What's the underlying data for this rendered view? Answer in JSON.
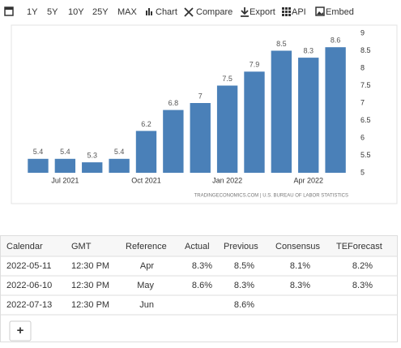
{
  "toolbar": [
    "1Y",
    "5Y",
    "10Y",
    "25Y",
    "MAX",
    "Chart",
    "Compare",
    "Export",
    "API",
    "Embed"
  ],
  "chart_data": {
    "type": "bar",
    "categories": [
      null,
      "Jul 2021",
      null,
      null,
      "Oct 2021",
      null,
      null,
      "Jan 2022",
      null,
      null,
      "Apr 2022",
      null
    ],
    "values": [
      5.4,
      5.4,
      5.3,
      5.4,
      6.2,
      6.8,
      7,
      7.5,
      7.9,
      8.5,
      8.3,
      8.6
    ],
    "color": "#4a80b8",
    "ylim": [
      5,
      9
    ],
    "yticks": [
      5,
      5.5,
      6,
      6.5,
      7,
      7.5,
      8,
      8.5,
      9
    ],
    "grid": false,
    "source": "TRADINGECONOMICS.COM | U.S. BUREAU OF LABOR STATISTICS"
  },
  "table": {
    "headers": [
      "Calendar",
      "GMT",
      "Reference",
      "Actual",
      "Previous",
      "Consensus",
      "TEForecast"
    ],
    "rows": [
      {
        "calendar": "2022-05-11",
        "gmt": "12:30 PM",
        "reference": "Apr",
        "actual": "8.3%",
        "previous": "8.5%",
        "consensus": "8.1%",
        "teforecast": "8.2%"
      },
      {
        "calendar": "2022-06-10",
        "gmt": "12:30 PM",
        "reference": "May",
        "actual": "8.6%",
        "previous": "8.3%",
        "consensus": "8.3%",
        "teforecast": "8.3%"
      },
      {
        "calendar": "2022-07-13",
        "gmt": "12:30 PM",
        "reference": "Jun",
        "previous": "8.6%"
      }
    ],
    "add_button": "+"
  }
}
